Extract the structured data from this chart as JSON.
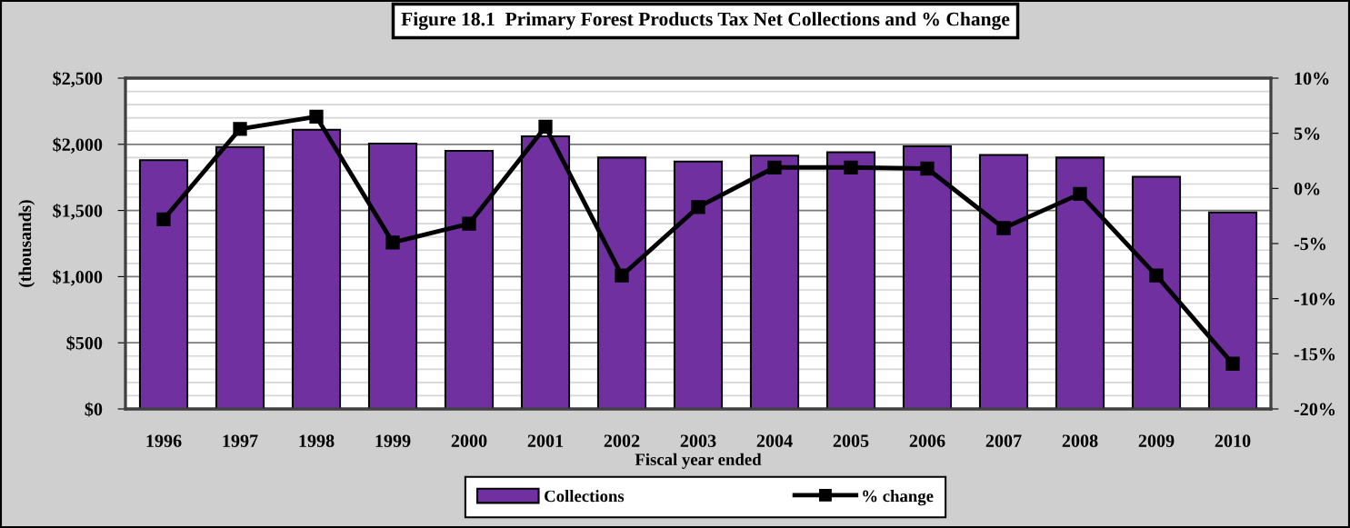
{
  "chart_data": {
    "type": "bar",
    "title": "Figure 18.1  Primary Forest Products Tax Net Collections and % Change",
    "xlabel": "Fiscal year ended",
    "ylabel": "(thousands)",
    "categories": [
      "1996",
      "1997",
      "1998",
      "1999",
      "2000",
      "2001",
      "2002",
      "2003",
      "2004",
      "2005",
      "2006",
      "2007",
      "2008",
      "2009",
      "2010"
    ],
    "series": [
      {
        "name": "Collections",
        "color": "#7030a0",
        "values": [
          1880,
          1980,
          2110,
          2005,
          1950,
          2060,
          1900,
          1870,
          1915,
          1940,
          1985,
          1920,
          1900,
          1755,
          1485
        ]
      },
      {
        "name": "% change",
        "type": "line",
        "axis": "y2",
        "color": "#000000",
        "values": [
          -2.8,
          5.4,
          6.5,
          -4.9,
          -3.2,
          5.6,
          -7.9,
          -1.7,
          1.9,
          1.9,
          1.8,
          -3.6,
          -0.5,
          -7.9,
          -15.9
        ]
      }
    ],
    "ylim": [
      0,
      2500
    ],
    "yticks": [
      {
        "value": 0,
        "label": "$0"
      },
      {
        "value": 100,
        "label": null
      },
      {
        "value": 200,
        "label": null
      },
      {
        "value": 300,
        "label": null
      },
      {
        "value": 400,
        "label": null
      },
      {
        "value": 500,
        "label": "$500"
      },
      {
        "value": 600,
        "label": null
      },
      {
        "value": 700,
        "label": null
      },
      {
        "value": 800,
        "label": null
      },
      {
        "value": 900,
        "label": null
      },
      {
        "value": 1000,
        "label": "$1,000"
      },
      {
        "value": 1100,
        "label": null
      },
      {
        "value": 1200,
        "label": null
      },
      {
        "value": 1300,
        "label": null
      },
      {
        "value": 1400,
        "label": null
      },
      {
        "value": 1500,
        "label": "$1,500"
      },
      {
        "value": 1600,
        "label": null
      },
      {
        "value": 1700,
        "label": null
      },
      {
        "value": 1800,
        "label": null
      },
      {
        "value": 1900,
        "label": null
      },
      {
        "value": 2000,
        "label": "$2,000"
      },
      {
        "value": 2100,
        "label": null
      },
      {
        "value": 2200,
        "label": null
      },
      {
        "value": 2300,
        "label": null
      },
      {
        "value": 2400,
        "label": null
      },
      {
        "value": 2500,
        "label": "$2,500"
      }
    ],
    "y2lim": [
      -20,
      10
    ],
    "y2ticks": [
      {
        "value": -20,
        "label": "-20%"
      },
      {
        "value": -15,
        "label": "-15%"
      },
      {
        "value": -10,
        "label": "-10%"
      },
      {
        "value": -5,
        "label": "-5%"
      },
      {
        "value": 0,
        "label": "0%"
      },
      {
        "value": 5,
        "label": "5%"
      },
      {
        "value": 10,
        "label": "10%"
      }
    ],
    "grid": "y",
    "legend": "bottom",
    "marker": "square",
    "line_style": "solid"
  }
}
